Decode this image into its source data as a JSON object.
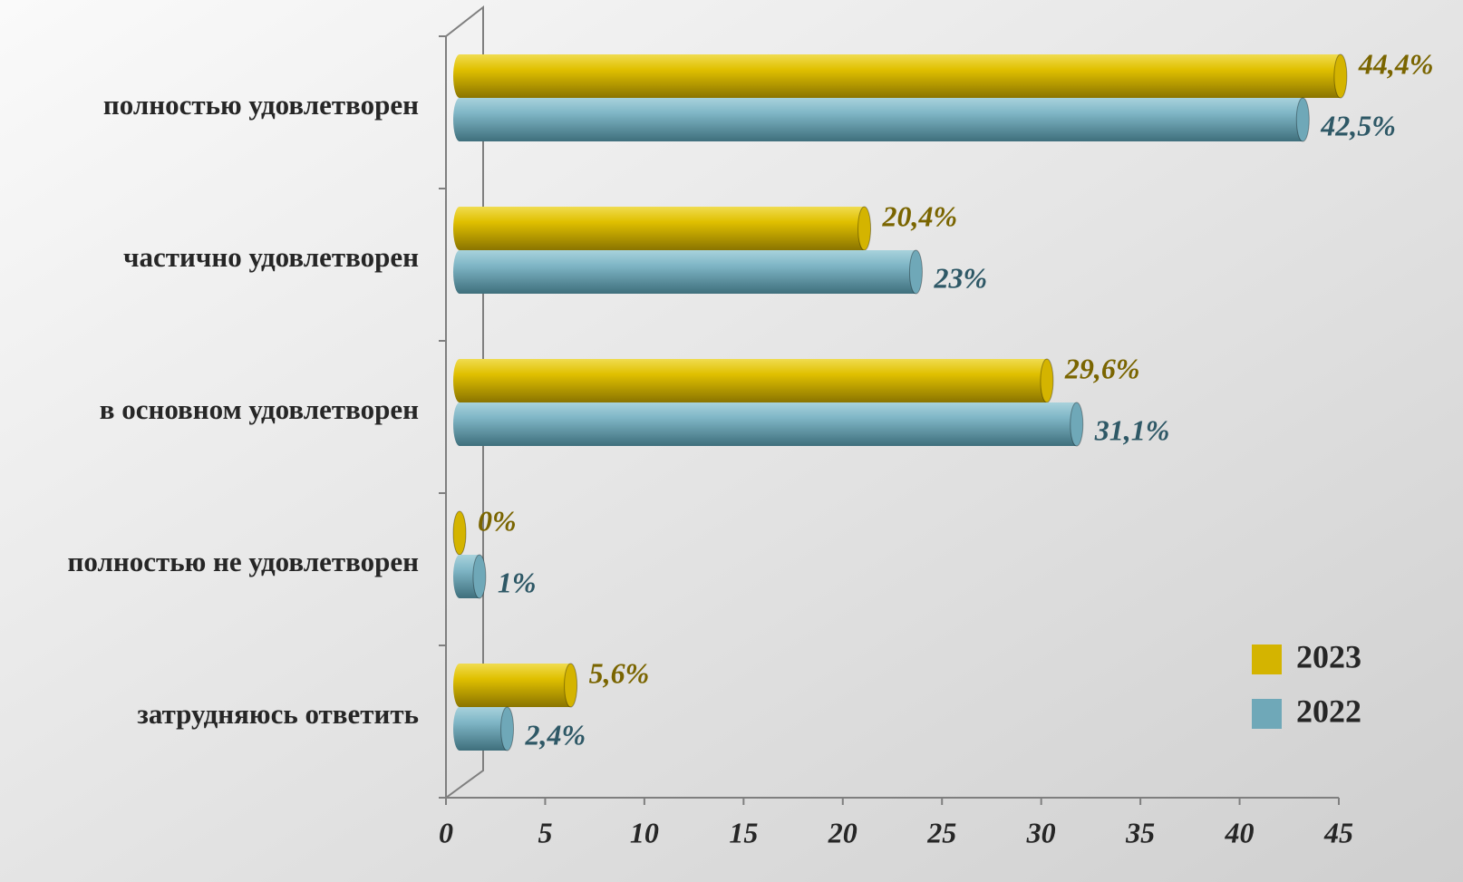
{
  "chart_data": {
    "type": "bar",
    "orientation": "horizontal",
    "categories": [
      "полностью удовлетворен",
      "частично удовлетворен",
      "в основном удовлетворен",
      "полностью не удовлетворен",
      "затрудняюсь ответить"
    ],
    "series": [
      {
        "name": "2023",
        "color": "#d4b400",
        "values": [
          44.4,
          20.4,
          29.6,
          0,
          5.6
        ],
        "value_labels": [
          "44,4%",
          "20,4%",
          "29,6%",
          "0%",
          "5,6%"
        ],
        "label_color": "#7a6500"
      },
      {
        "name": "2022",
        "color": "#6fa8b8",
        "values": [
          42.5,
          23,
          31.1,
          1,
          2.4
        ],
        "value_labels": [
          "42,5%",
          "23%",
          "31,1%",
          "1%",
          "2,4%"
        ],
        "label_color": "#2e5866"
      }
    ],
    "xlim": [
      0,
      45
    ],
    "xticks": [
      0,
      5,
      10,
      15,
      20,
      25,
      30,
      35,
      40,
      45
    ],
    "legend": "bottom-right",
    "grid": false
  }
}
